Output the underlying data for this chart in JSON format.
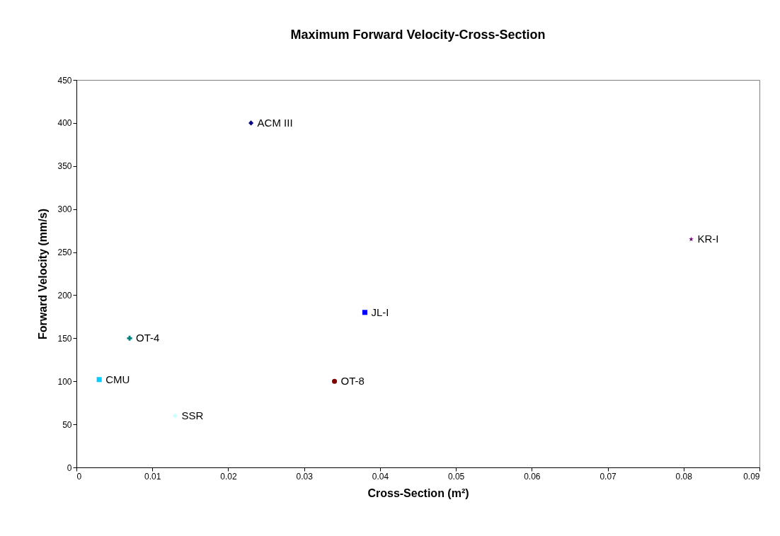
{
  "chart_data": {
    "type": "scatter",
    "title": "Maximum Forward Velocity-Cross-Section",
    "xlabel": "Cross-Section (m²)",
    "ylabel": "Forward Velocity (mm/s)",
    "xlim": [
      0,
      0.09
    ],
    "xticks": [
      0,
      0.01,
      0.02,
      0.03,
      0.04,
      0.05,
      0.06,
      0.07,
      0.08,
      0.09
    ],
    "ylim": [
      0,
      450
    ],
    "yticks": [
      0,
      50,
      100,
      150,
      200,
      250,
      300,
      350,
      400,
      450
    ],
    "grid": false,
    "legend": false,
    "series": [
      {
        "name": "ACM III",
        "color": "#000080",
        "marker": "diamond",
        "x": [
          0.023
        ],
        "values": [
          400
        ]
      },
      {
        "name": "CMU",
        "color": "#00ccff",
        "marker": "square",
        "x": [
          0.003
        ],
        "values": [
          102
        ]
      },
      {
        "name": "OT-4",
        "color": "#008080",
        "marker": "cross",
        "x": [
          0.007
        ],
        "values": [
          150
        ]
      },
      {
        "name": "SSR",
        "color": "#ccffff",
        "marker": "diamond",
        "x": [
          0.013
        ],
        "values": [
          60
        ]
      },
      {
        "name": "OT-8",
        "color": "#800000",
        "marker": "circle",
        "x": [
          0.034
        ],
        "values": [
          100
        ]
      },
      {
        "name": "JL-I",
        "color": "#0000ff",
        "marker": "square",
        "x": [
          0.038
        ],
        "values": [
          180
        ]
      },
      {
        "name": "KR-I",
        "color": "#800080",
        "marker": "star",
        "x": [
          0.081
        ],
        "values": [
          265
        ]
      }
    ]
  }
}
